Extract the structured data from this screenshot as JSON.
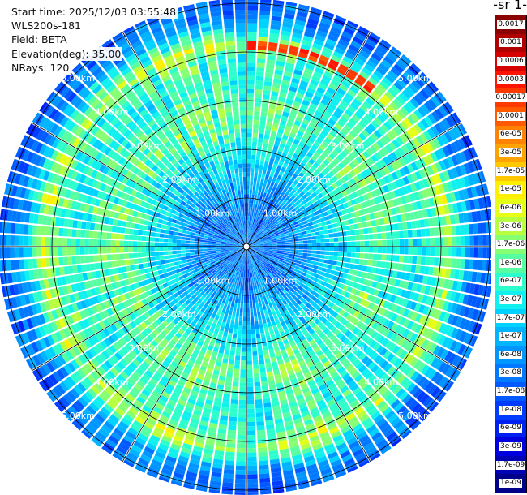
{
  "info": {
    "start_time": "Start time: 2025/12/03 03:55:48",
    "instrument": "WLS200s-181",
    "field": "Field: BETA",
    "elevation": "Elevation(deg): 35.00",
    "nrays": "NRays: 120"
  },
  "chart_data": {
    "type": "heatmap",
    "projection": "polar",
    "field": "BETA",
    "units_fragment": "-1 sr-",
    "n_rays": 120,
    "range_rings_km": [
      1,
      2,
      3,
      4,
      5
    ],
    "range_ring_labels": [
      "1.00km",
      "2.00km",
      "3.00km",
      "4.00km",
      "5.00km"
    ],
    "max_range_km": 5.1,
    "azimuth_spokes_deg": [
      0,
      30,
      60,
      90,
      120,
      150,
      180,
      210,
      240,
      270,
      300,
      330
    ],
    "colorbar_labels": [
      "0.0017",
      "0.001",
      "0.0006",
      "0.0003",
      "0.00017",
      "0.0001",
      "6e-05",
      "3e-05",
      "1.7e-05",
      "1e-05",
      "6e-06",
      "3e-06",
      "1.7e-06",
      "1e-06",
      "6e-07",
      "3e-07",
      "1.7e-07",
      "1e-07",
      "6e-08",
      "3e-08",
      "1.7e-08",
      "1e-08",
      "6e-09",
      "3e-09",
      "1.7e-09",
      "1e-09"
    ],
    "colorbar_colors": [
      "#8b0000",
      "#b00000",
      "#d60000",
      "#ff1500",
      "#ff3a00",
      "#ff5a00",
      "#ff8200",
      "#ffa300",
      "#ffc800",
      "#fff000",
      "#e6ff16",
      "#b8ff3f",
      "#86ff72",
      "#58ffa0",
      "#2dffcc",
      "#10f0ee",
      "#00d2ff",
      "#00b4ff",
      "#0096ff",
      "#0078ff",
      "#005aff",
      "#003cff",
      "#0020f2",
      "#0000de",
      "#0000b4",
      "#00008b"
    ],
    "range_profile": [
      {
        "r_km": 0.1,
        "level": 18.5
      },
      {
        "r_km": 0.6,
        "level": 19.0
      },
      {
        "r_km": 1.0,
        "level": 18.4
      },
      {
        "r_km": 1.5,
        "level": 16.5
      },
      {
        "r_km": 2.0,
        "level": 15.2
      },
      {
        "r_km": 2.6,
        "level": 12.8
      },
      {
        "r_km": 3.0,
        "level": 13.4
      },
      {
        "r_km": 3.5,
        "level": 14.6
      },
      {
        "r_km": 3.9,
        "level": 13.6
      },
      {
        "r_km": 4.15,
        "level": 10.8
      },
      {
        "r_km": 4.4,
        "level": 14.8
      },
      {
        "r_km": 4.7,
        "level": 18.6
      },
      {
        "r_km": 5.1,
        "level": 19.8
      }
    ],
    "hotspot": {
      "az_deg_from": 0,
      "az_deg_to": 40,
      "r_km": 4.15,
      "level": 3.8
    }
  }
}
